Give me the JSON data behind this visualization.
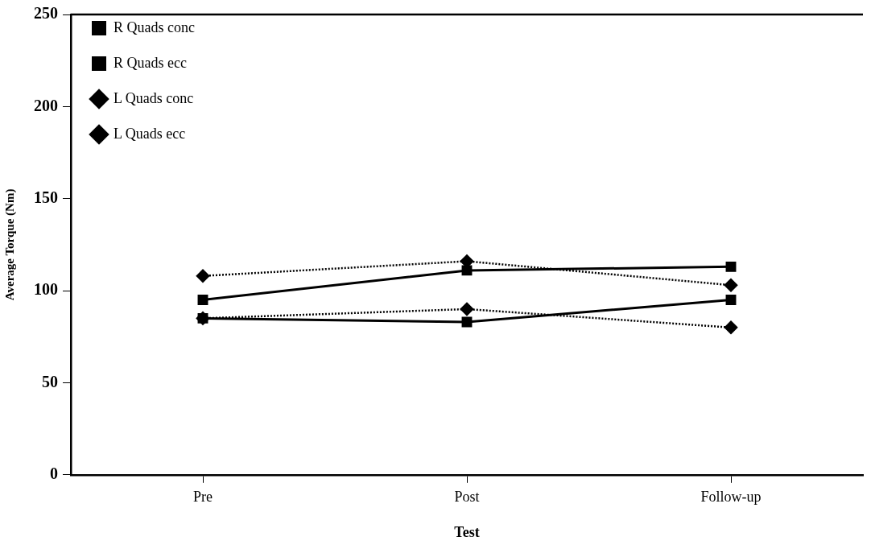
{
  "chart_data": {
    "type": "line",
    "xlabel": "Test",
    "ylabel": "Average Torque (Nm)",
    "categories": [
      "Pre",
      "Post",
      "Follow-up"
    ],
    "ylim": [
      0,
      250
    ],
    "yticks": [
      0,
      50,
      100,
      150,
      200,
      250
    ],
    "grid": false,
    "legend": "top left",
    "series": [
      {
        "name": "R Quads conc",
        "color": "#000000",
        "values": [
          85,
          83,
          95
        ],
        "marker": "square",
        "line_style": "solid"
      },
      {
        "name": "R Quads ecc",
        "color": "#000000",
        "values": [
          95,
          111,
          113
        ],
        "marker": "square",
        "line_style": "solid"
      },
      {
        "name": "L Quads conc",
        "color": "#000000",
        "values": [
          85,
          90,
          80
        ],
        "marker": "diamond",
        "line_style": "dotted"
      },
      {
        "name": "L Quads ecc",
        "color": "#000000",
        "values": [
          108,
          116,
          103
        ],
        "marker": "diamond",
        "line_style": "dotted"
      }
    ]
  }
}
